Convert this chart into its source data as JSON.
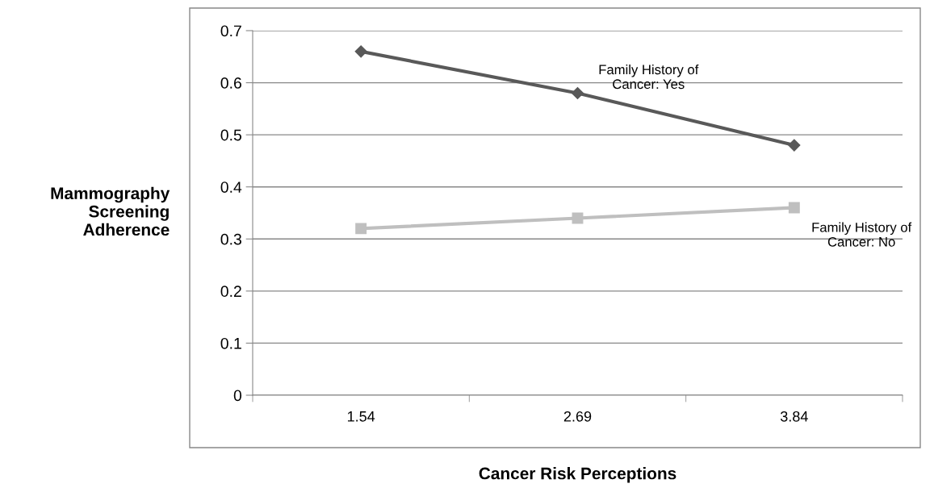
{
  "chart_data": {
    "type": "line",
    "xlabel": "Cancer Risk Perceptions",
    "ylabel": "Mammography\nScreening\nAdherence",
    "categories": [
      "1.54",
      "2.69",
      "3.84"
    ],
    "series": [
      {
        "name": "Family History of\nCancer: Yes",
        "color": "#595959",
        "marker": "diamond",
        "values": [
          0.66,
          0.58,
          0.48
        ]
      },
      {
        "name": "Family History of\nCancer: No",
        "color": "#bfbfbf",
        "marker": "square",
        "values": [
          0.32,
          0.34,
          0.36
        ]
      }
    ],
    "ylim": [
      0,
      0.7
    ],
    "yticks": [
      0,
      0.1,
      0.2,
      0.3,
      0.4,
      0.5,
      0.6,
      0.7
    ],
    "grid": "y",
    "legend": false
  }
}
